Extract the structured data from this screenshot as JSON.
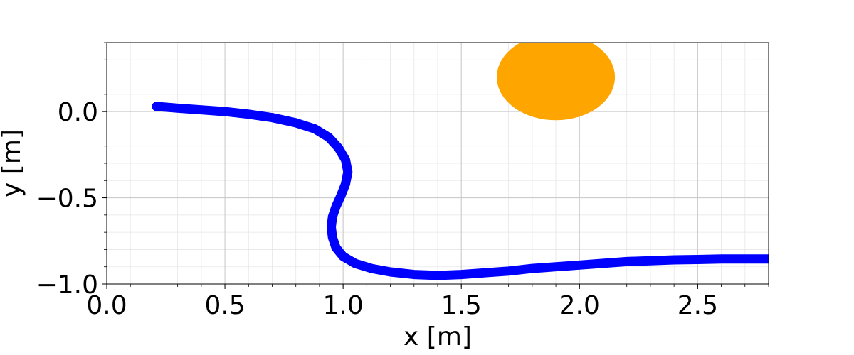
{
  "chart_data": {
    "type": "line",
    "title": "",
    "xlabel": "x [m]",
    "ylabel": "y [m]",
    "xlim": [
      0.0,
      2.8
    ],
    "ylim": [
      -1.0,
      0.4
    ],
    "xticks": [
      0.0,
      0.5,
      1.0,
      1.5,
      2.0,
      2.5
    ],
    "xtick_labels": [
      "0.0",
      "0.5",
      "1.0",
      "1.5",
      "2.0",
      "2.5"
    ],
    "yticks": [
      0.0,
      -0.5,
      -1.0
    ],
    "ytick_labels": [
      "0.0",
      "−0.5",
      "−1.0"
    ],
    "x_minor_step": 0.1,
    "y_minor_step": 0.1,
    "grid": true,
    "series": [
      {
        "color": "#0000ff",
        "x": [
          0.21,
          0.3,
          0.4,
          0.5,
          0.6,
          0.7,
          0.8,
          0.88,
          0.94,
          0.98,
          1.01,
          1.02,
          1.01,
          0.99,
          0.97,
          0.955,
          0.95,
          0.955,
          0.97,
          1.0,
          1.05,
          1.12,
          1.2,
          1.3,
          1.4,
          1.5,
          1.6,
          1.7,
          1.8,
          1.9,
          2.0,
          2.1,
          2.2,
          2.3,
          2.4,
          2.5,
          2.6,
          2.7,
          2.8
        ],
        "y": [
          0.03,
          0.02,
          0.01,
          0.0,
          -0.015,
          -0.035,
          -0.065,
          -0.1,
          -0.15,
          -0.21,
          -0.28,
          -0.35,
          -0.42,
          -0.49,
          -0.55,
          -0.61,
          -0.67,
          -0.73,
          -0.79,
          -0.84,
          -0.88,
          -0.91,
          -0.93,
          -0.945,
          -0.95,
          -0.945,
          -0.935,
          -0.925,
          -0.91,
          -0.9,
          -0.89,
          -0.88,
          -0.87,
          -0.865,
          -0.86,
          -0.858,
          -0.855,
          -0.855,
          -0.855
        ]
      }
    ],
    "obstacle": {
      "center": [
        1.9,
        0.2
      ],
      "radius": 0.25,
      "color": "#ffa500"
    }
  }
}
